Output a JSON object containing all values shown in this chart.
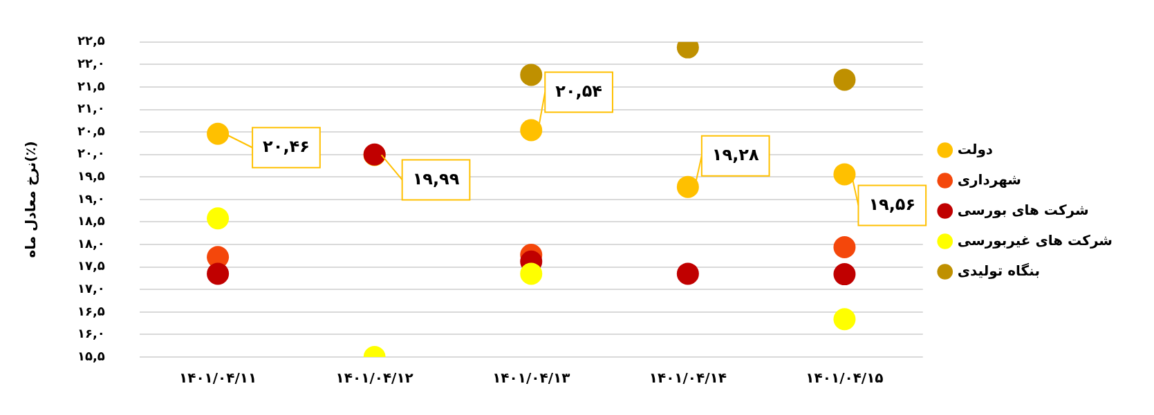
{
  "chart_data": {
    "type": "scatter",
    "ylabel": "نرخ معادل ماه(٪)",
    "categories": [
      "۱۴۰۱/۰۴/۱۱",
      "۱۴۰۱/۰۴/۱۲",
      "۱۴۰۱/۰۴/۱۳",
      "۱۴۰۱/۰۴/۱۴",
      "۱۴۰۱/۰۴/۱۵"
    ],
    "series": [
      {
        "name": "دولت",
        "color": "#ffc000",
        "values": [
          20.46,
          19.99,
          20.54,
          19.28,
          19.56
        ],
        "value_labels": [
          "۲۰,۴۶",
          "۱۹,۹۹",
          "۲۰,۵۴",
          "۱۹,۲۸",
          "۱۹,۵۶"
        ]
      },
      {
        "name": "شهرداری",
        "color": "#f4470b",
        "values": [
          17.72,
          null,
          17.77,
          null,
          17.94
        ]
      },
      {
        "name": "شرکت های بورسی",
        "color": "#c00000",
        "values": [
          17.35,
          20.0,
          17.62,
          17.35,
          17.34
        ]
      },
      {
        "name": "شرکت های غیربورسی",
        "color": "#ffff00",
        "values": [
          18.58,
          15.5,
          17.35,
          null,
          16.34
        ]
      },
      {
        "name": "بنگاه تولیدی",
        "color": "#bf9000",
        "values": [
          null,
          null,
          21.77,
          22.38,
          21.66
        ]
      }
    ],
    "ylim": [
      15.5,
      22.5
    ],
    "yticks": [
      {
        "value": 15.5,
        "label": "۱۵,۵"
      },
      {
        "value": 16,
        "label": "۱۶,۰"
      },
      {
        "value": 16.5,
        "label": "۱۶,۵"
      },
      {
        "value": 17,
        "label": "۱۷,۰"
      },
      {
        "value": 17.5,
        "label": "۱۷,۵"
      },
      {
        "value": 18,
        "label": "۱۸,۰"
      },
      {
        "value": 18.5,
        "label": "۱۸,۵"
      },
      {
        "value": 19,
        "label": "۱۹,۰"
      },
      {
        "value": 19.5,
        "label": "۱۹,۵"
      },
      {
        "value": 20,
        "label": "۲۰,۰"
      },
      {
        "value": 20.5,
        "label": "۲۰,۵"
      },
      {
        "value": 21,
        "label": "۲۱,۰"
      },
      {
        "value": 21.5,
        "label": "۲۱,۵"
      },
      {
        "value": 22,
        "label": "۲۲,۰"
      },
      {
        "value": 22.5,
        "label": "۲۲,۵"
      }
    ],
    "grid": "y",
    "legend": "right",
    "marker": "circle"
  }
}
